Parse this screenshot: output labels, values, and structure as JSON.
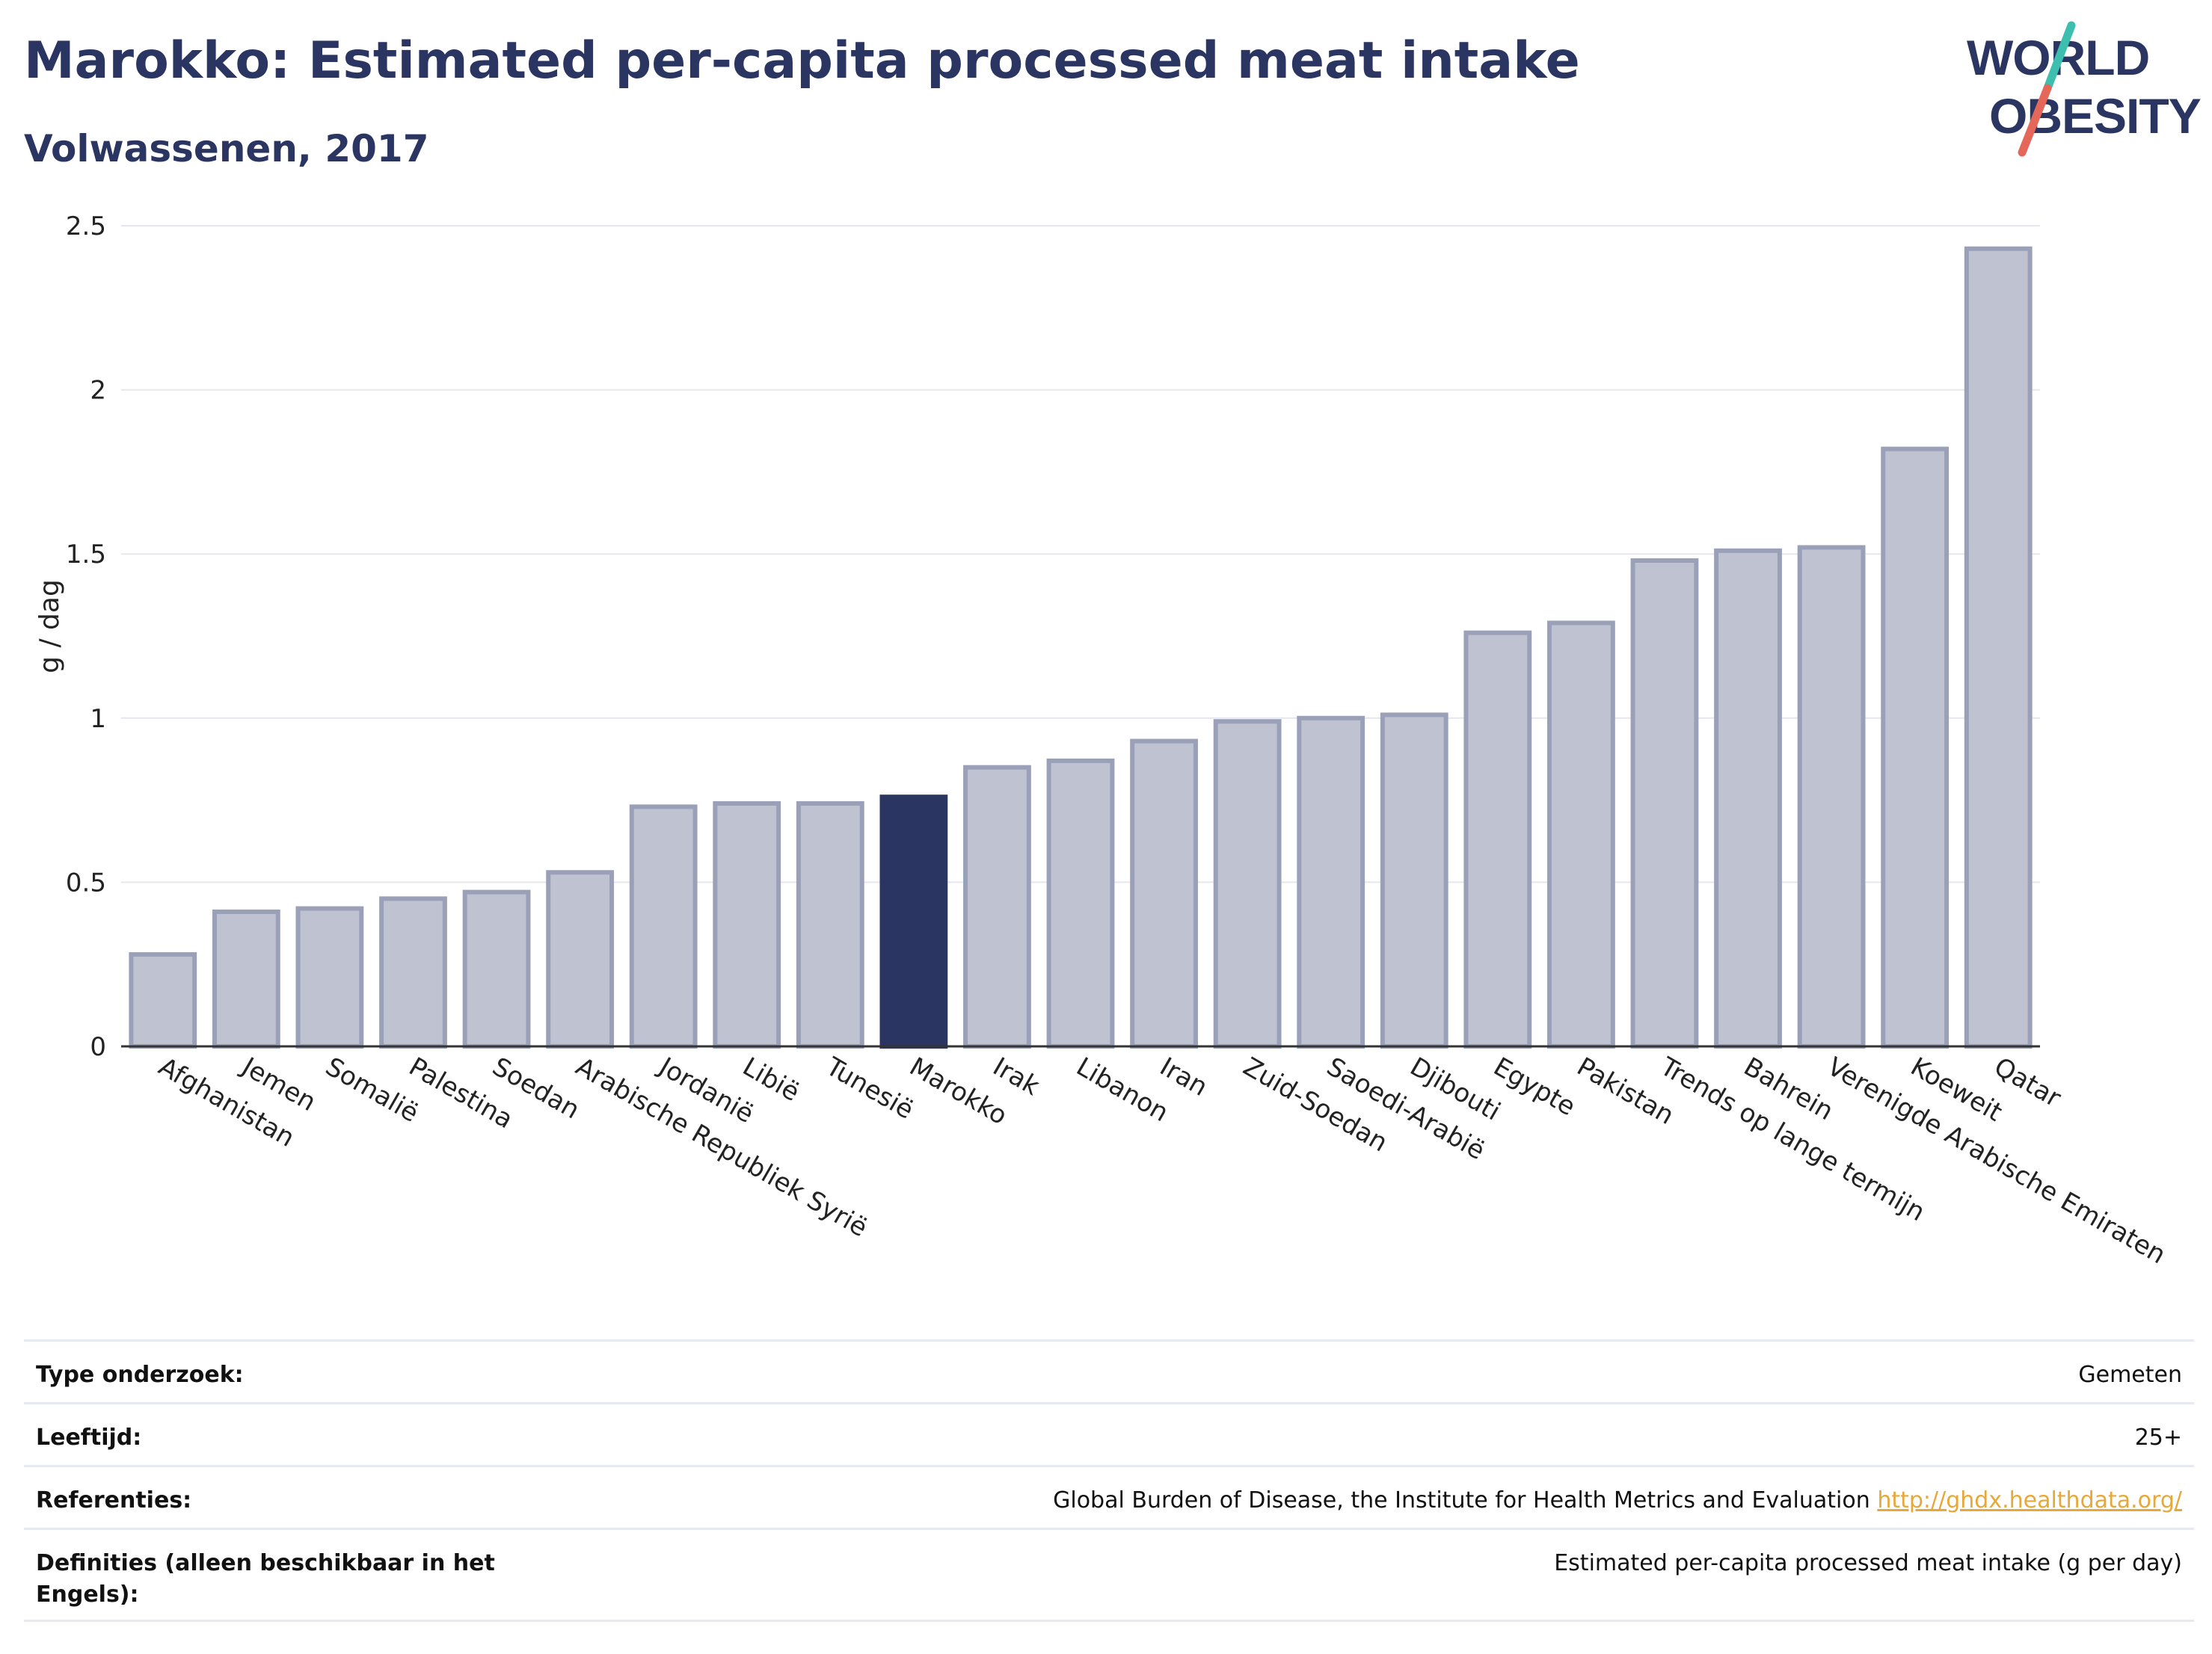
{
  "header": {
    "title": "Marokko: Estimated per-capita processed meat intake",
    "subtitle": "Volwassenen, 2017"
  },
  "logo": {
    "line1": "WORLD",
    "line2": "OBESITY",
    "colors": {
      "text": "#2b3562",
      "slash_top": "#3cbfae",
      "slash_bottom": "#e5675a"
    }
  },
  "colors": {
    "highlight_bar": "#2b3562",
    "other_bar_fill": "#bfc2d0",
    "other_bar_stroke": "#9aa0b8",
    "grid": "#e6e6ee",
    "axis": "#333333"
  },
  "chart_data": {
    "type": "bar",
    "title": "",
    "xlabel": "",
    "ylabel": "g / dag",
    "ylim": [
      0,
      2.5
    ],
    "yticks": [
      0,
      0.5,
      1,
      1.5,
      2,
      2.5
    ],
    "ytick_labels": [
      "0",
      "0.5",
      "1",
      "1.5",
      "2",
      "2.5"
    ],
    "grid": true,
    "highlight": "Marokko",
    "categories": [
      "Afghanistan",
      "Jemen",
      "Somalië",
      "Palestina",
      "Soedan",
      "Arabische Republiek Syrië",
      "Jordanië",
      "Libië",
      "Tunesië",
      "Marokko",
      "Irak",
      "Libanon",
      "Iran",
      "Zuid-Soedan",
      "Saoedi-Arabië",
      "Djibouti",
      "Egypte",
      "Pakistan",
      "Trends op lange termijn",
      "Bahrein",
      "Verenigde Arabische Emiraten",
      "Koeweit",
      "Qatar"
    ],
    "values": [
      0.28,
      0.41,
      0.42,
      0.45,
      0.47,
      0.53,
      0.73,
      0.74,
      0.74,
      0.76,
      0.85,
      0.87,
      0.93,
      0.99,
      1.0,
      1.01,
      1.26,
      1.29,
      1.48,
      1.51,
      1.52,
      1.82,
      2.43
    ]
  },
  "info": [
    {
      "label": "Type onderzoek:",
      "value": "Gemeten"
    },
    {
      "label": "Leeftijd:",
      "value": "25+"
    },
    {
      "label": "Referenties:",
      "value": "Global Burden of Disease, the Institute for Health Metrics and Evaluation",
      "link": "http://ghdx.healthdata.org/"
    },
    {
      "label": "Definities (alleen beschikbaar in het Engels):",
      "value": "Estimated per-capita processed meat intake (g per day)"
    }
  ]
}
